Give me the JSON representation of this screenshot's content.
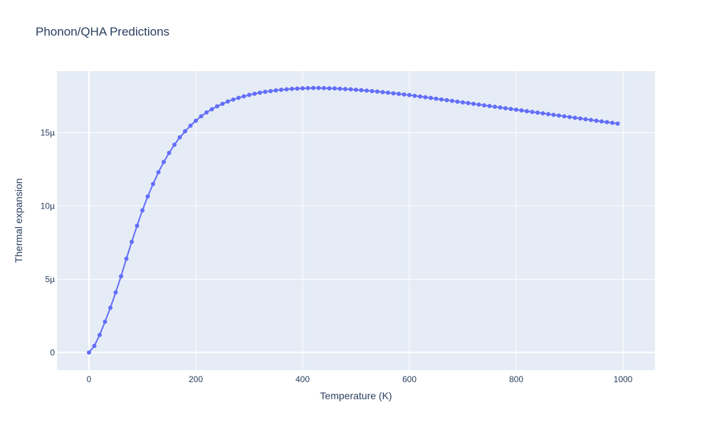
{
  "chart_data": {
    "type": "line",
    "title": "Phonon/QHA Predictions",
    "xlabel": "Temperature (K)",
    "ylabel": "Thermal expansion",
    "xlim": [
      -60,
      1060
    ],
    "ylim": [
      -1.2e-06,
      1.92e-05
    ],
    "x_ticks": [
      0,
      200,
      400,
      600,
      800,
      1000
    ],
    "x_tick_labels": [
      "0",
      "200",
      "400",
      "600",
      "800",
      "1000"
    ],
    "y_ticks": [
      0,
      5e-06,
      1e-05,
      1.5e-05
    ],
    "y_tick_labels": [
      "0",
      "5µ",
      "10µ",
      "15µ"
    ],
    "grid": true,
    "legend": "none",
    "colors": {
      "series": "#636efa",
      "plot_bg": "#e5ecf6",
      "grid": "#ffffff",
      "text": "#2a3f5f"
    },
    "series": [
      {
        "mode": "lines+markers",
        "x": [
          0,
          10,
          20,
          30,
          40,
          50,
          60,
          70,
          80,
          90,
          100,
          110,
          120,
          130,
          140,
          150,
          160,
          170,
          180,
          190,
          200,
          210,
          220,
          230,
          240,
          250,
          260,
          270,
          280,
          290,
          300,
          310,
          320,
          330,
          340,
          350,
          360,
          370,
          380,
          390,
          400,
          410,
          420,
          430,
          440,
          450,
          460,
          470,
          480,
          490,
          500,
          510,
          520,
          530,
          540,
          550,
          560,
          570,
          580,
          590,
          600,
          610,
          620,
          630,
          640,
          650,
          660,
          670,
          680,
          690,
          700,
          710,
          720,
          730,
          740,
          750,
          760,
          770,
          780,
          790,
          800,
          810,
          820,
          830,
          840,
          850,
          860,
          870,
          880,
          890,
          900,
          910,
          920,
          930,
          940,
          950,
          960,
          970,
          980,
          990
        ],
        "y": [
          0,
          4.5e-07,
          1.2e-06,
          2.1e-06,
          3.05e-06,
          4.1e-06,
          5.2e-06,
          6.4e-06,
          7.55e-06,
          8.65e-06,
          9.7e-06,
          1.065e-05,
          1.15e-05,
          1.23e-05,
          1.3e-05,
          1.362e-05,
          1.418e-05,
          1.468e-05,
          1.51e-05,
          1.548e-05,
          1.582e-05,
          1.612e-05,
          1.638e-05,
          1.66e-05,
          1.68e-05,
          1.697e-05,
          1.713e-05,
          1.726e-05,
          1.738e-05,
          1.748e-05,
          1.758e-05,
          1.766e-05,
          1.773e-05,
          1.779e-05,
          1.784e-05,
          1.789e-05,
          1.793e-05,
          1.796e-05,
          1.799e-05,
          1.801e-05,
          1.803e-05,
          1.804e-05,
          1.805e-05,
          1.805e-05,
          1.804e-05,
          1.803e-05,
          1.802e-05,
          1.8e-05,
          1.798e-05,
          1.796e-05,
          1.793e-05,
          1.79e-05,
          1.787e-05,
          1.784e-05,
          1.781e-05,
          1.777e-05,
          1.773e-05,
          1.769e-05,
          1.765e-05,
          1.761e-05,
          1.757e-05,
          1.752e-05,
          1.747e-05,
          1.742e-05,
          1.737e-05,
          1.732e-05,
          1.727e-05,
          1.722e-05,
          1.717e-05,
          1.712e-05,
          1.707e-05,
          1.702e-05,
          1.697e-05,
          1.692e-05,
          1.687e-05,
          1.682e-05,
          1.677e-05,
          1.672e-05,
          1.667e-05,
          1.662e-05,
          1.657e-05,
          1.652e-05,
          1.647e-05,
          1.642e-05,
          1.637e-05,
          1.632e-05,
          1.627e-05,
          1.622e-05,
          1.617e-05,
          1.612e-05,
          1.607e-05,
          1.602e-05,
          1.597e-05,
          1.592e-05,
          1.587e-05,
          1.582e-05,
          1.577e-05,
          1.572e-05,
          1.567e-05,
          1.562e-05
        ]
      }
    ]
  }
}
